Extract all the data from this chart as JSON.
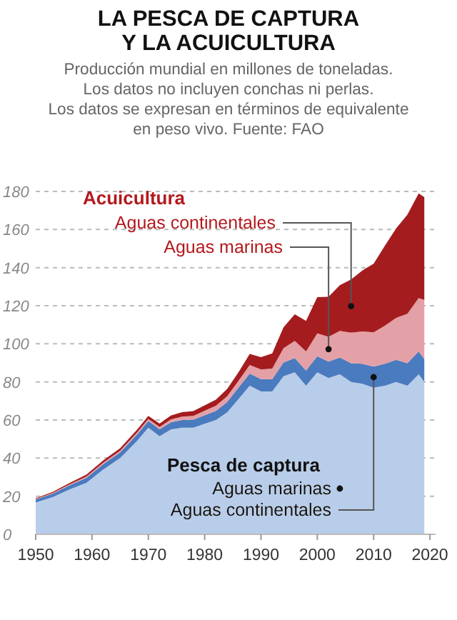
{
  "chart_data": {
    "type": "area",
    "stacked": true,
    "title": "LA PESCA DE CAPTURA\nY LA ACUICULTURA",
    "subtitle": "Producción mundial en millones de toneladas.\nLos datos no incluyen conchas ni perlas.\nLos datos se expresan en términos de equivalente\nen peso vivo. Fuente: FAO",
    "x": [
      1950,
      1953,
      1956,
      1959,
      1962,
      1965,
      1968,
      1970,
      1972,
      1974,
      1976,
      1978,
      1980,
      1982,
      1984,
      1986,
      1988,
      1990,
      1992,
      1994,
      1996,
      1998,
      2000,
      2002,
      2004,
      2006,
      2008,
      2010,
      2012,
      2014,
      2016,
      2018,
      2019
    ],
    "series": [
      {
        "name": "Aguas marinas",
        "color": "#b8cde9",
        "values": [
          16.7,
          19.5,
          23.5,
          27,
          34,
          40,
          49,
          56,
          51.5,
          55,
          56,
          56,
          58,
          60,
          64,
          71,
          78,
          75,
          75,
          83,
          85,
          78,
          85,
          82,
          84,
          80,
          79,
          77,
          78,
          80,
          78,
          84,
          80
        ]
      },
      {
        "name": "Aguas continentales",
        "color": "#4a7bbf",
        "values": [
          1.6,
          1.8,
          2.2,
          2.6,
          2.8,
          3,
          3.4,
          3.5,
          3.6,
          3.8,
          4,
          4.2,
          4.5,
          4.8,
          5.5,
          6,
          6.4,
          6.5,
          6.5,
          7.2,
          7.5,
          8,
          8.5,
          8.7,
          8.8,
          9.8,
          10.5,
          11,
          11.5,
          11.6,
          11.8,
          12,
          12
        ]
      },
      {
        "name": "Aguas marinas",
        "color": "#e3a0a6",
        "values": [
          0.3,
          0.4,
          0.5,
          0.7,
          0.8,
          0.9,
          1,
          1.1,
          1.2,
          1.5,
          1.8,
          2,
          2.4,
          2.7,
          3,
          3.5,
          4.5,
          5,
          5.5,
          7.5,
          9,
          10,
          12,
          13,
          14,
          16,
          17,
          18,
          20,
          22,
          26,
          28,
          31
        ]
      },
      {
        "name": "Aguas continentales",
        "color": "#a51c1f",
        "values": [
          0.3,
          0.5,
          0.7,
          1,
          1.2,
          1.3,
          1.5,
          1.6,
          1.8,
          2,
          2.3,
          2.5,
          2.8,
          3.2,
          3.8,
          4.5,
          5.8,
          6.5,
          8,
          11,
          14,
          16,
          19,
          21,
          24,
          28,
          32,
          36,
          42,
          47,
          52,
          55,
          54
        ]
      }
    ],
    "annotations": [
      "Pesca de captura",
      "Acuicultura"
    ],
    "xlim": [
      1950,
      2021
    ],
    "xticks": [
      1950,
      1960,
      1970,
      1980,
      1990,
      2000,
      2010,
      2020
    ],
    "ylim": [
      0,
      180
    ],
    "yticks": [
      0,
      20,
      40,
      60,
      80,
      100,
      120,
      140,
      160,
      180
    ],
    "grid": "y"
  }
}
